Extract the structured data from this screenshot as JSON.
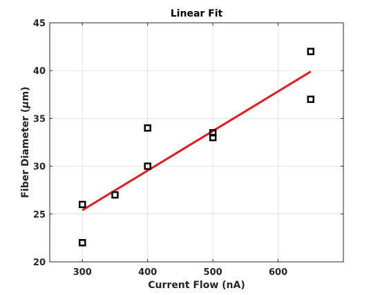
{
  "chart_data": {
    "type": "scatter",
    "title": "Linear Fit",
    "xlabel": "Current Flow (nA)",
    "ylabel_main": "Fiber Diameter (",
    "ylabel_unit": "μ",
    "ylabel_end": "m)",
    "xlim": [
      250,
      700
    ],
    "ylim": [
      20,
      45
    ],
    "xticks": [
      300,
      400,
      500,
      600
    ],
    "yticks": [
      20,
      25,
      30,
      35,
      40,
      45
    ],
    "grid": true,
    "series": [
      {
        "type": "scatter",
        "marker": "square",
        "color": "#000000",
        "points": [
          {
            "x": 300,
            "y": 26
          },
          {
            "x": 300,
            "y": 22
          },
          {
            "x": 350,
            "y": 27
          },
          {
            "x": 400,
            "y": 34
          },
          {
            "x": 400,
            "y": 30
          },
          {
            "x": 500,
            "y": 33.5
          },
          {
            "x": 500,
            "y": 33
          },
          {
            "x": 650,
            "y": 42
          },
          {
            "x": 650,
            "y": 37
          }
        ]
      },
      {
        "type": "line",
        "color": "#e41a1c",
        "points": [
          {
            "x": 300,
            "y": 25.4
          },
          {
            "x": 650,
            "y": 39.9
          }
        ]
      }
    ]
  }
}
